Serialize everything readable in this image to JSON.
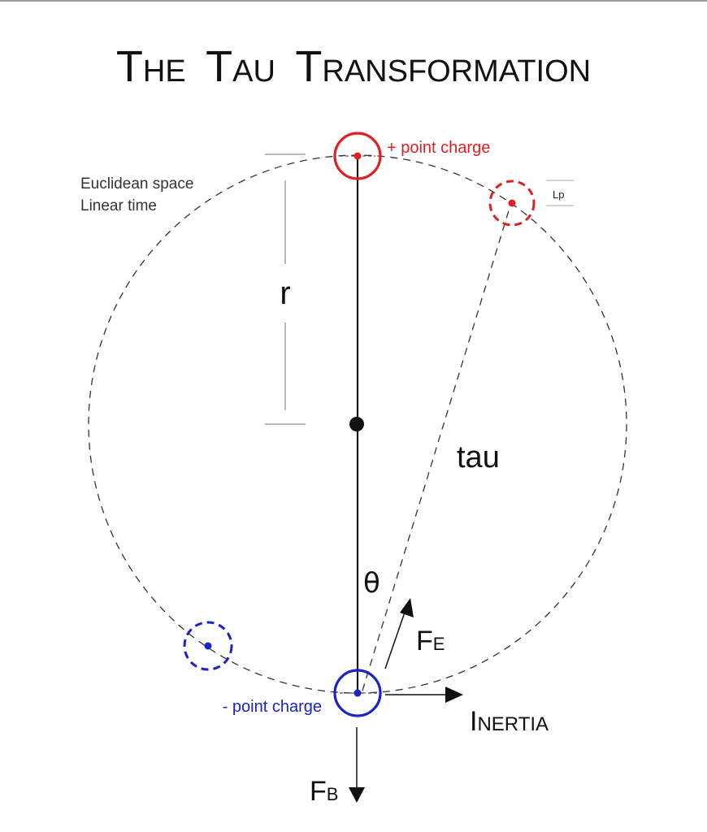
{
  "title": {
    "parts": [
      {
        "big": "T",
        "small": "HE"
      },
      {
        "big": "T",
        "small": "AU"
      },
      {
        "big": "T",
        "small": "RANSFORMATION"
      }
    ]
  },
  "labels": {
    "positive_charge": "+ point charge",
    "negative_charge": "- point charge",
    "space": "Euclidean space",
    "time": "Linear time",
    "radius": "r",
    "tau": "tau",
    "theta": "θ",
    "planck_length": "Lp",
    "force_e": {
      "main": "F",
      "sub": "E"
    },
    "force_b": {
      "main": "F",
      "sub": "B"
    },
    "inertia": {
      "big": "I",
      "small": "NERTIA"
    }
  },
  "colors": {
    "positive": "#e02020",
    "negative": "#1a22c8",
    "line": "#111111",
    "dashed": "#333333",
    "bracket": "#b8b8b8"
  }
}
